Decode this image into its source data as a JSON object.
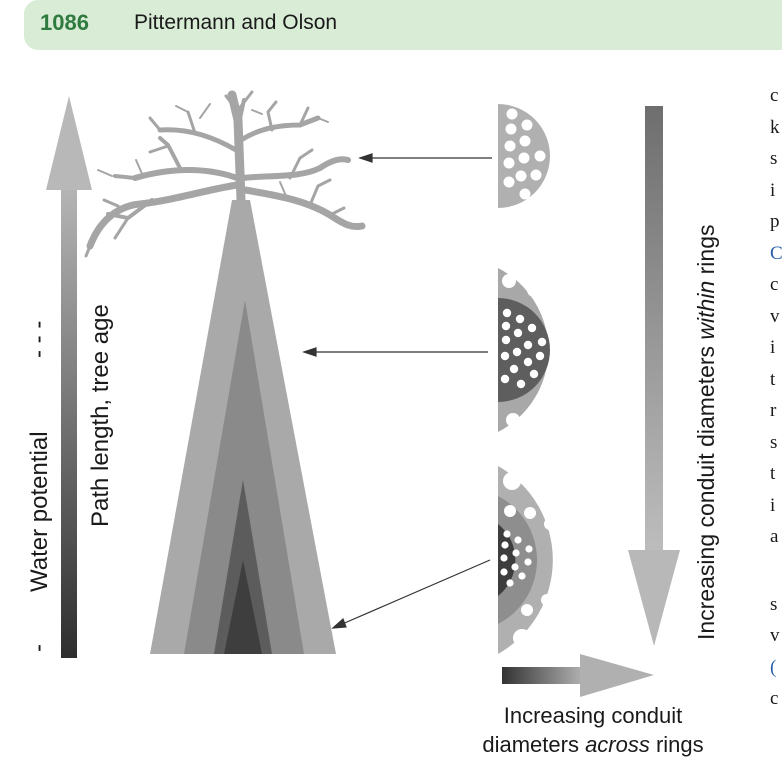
{
  "header": {
    "page_number": "1086",
    "running_head": "Pittermann and Olson"
  },
  "figure": {
    "label_water_potential": "Water potential",
    "label_path_length": "Path length, tree age",
    "label_minus": "-",
    "label_minus_dashes": "- - -",
    "label_within_pre": "Increasing conduit diameters ",
    "label_within_em": "within",
    "label_within_post": " rings",
    "label_across_line1": "Increasing conduit",
    "label_across_line2_pre": "diameters ",
    "label_across_line2_em": "across",
    "label_across_line2_post": " rings",
    "colors": {
      "header_bg": "#d9ecd6",
      "page_number": "#2f7a3e",
      "outer_ring": "#aaaaaa",
      "middle_ring": "#8a8a8a",
      "inner_ring": "#5a5a5a",
      "core": "#3c3c3c"
    }
  },
  "body_text_fragments": [
    "c",
    "k",
    "s",
    "i",
    "p",
    "C",
    "c",
    "v",
    "i",
    "t",
    "r",
    "s",
    "t",
    "i",
    "a",
    "s",
    "v",
    "(",
    "c"
  ]
}
